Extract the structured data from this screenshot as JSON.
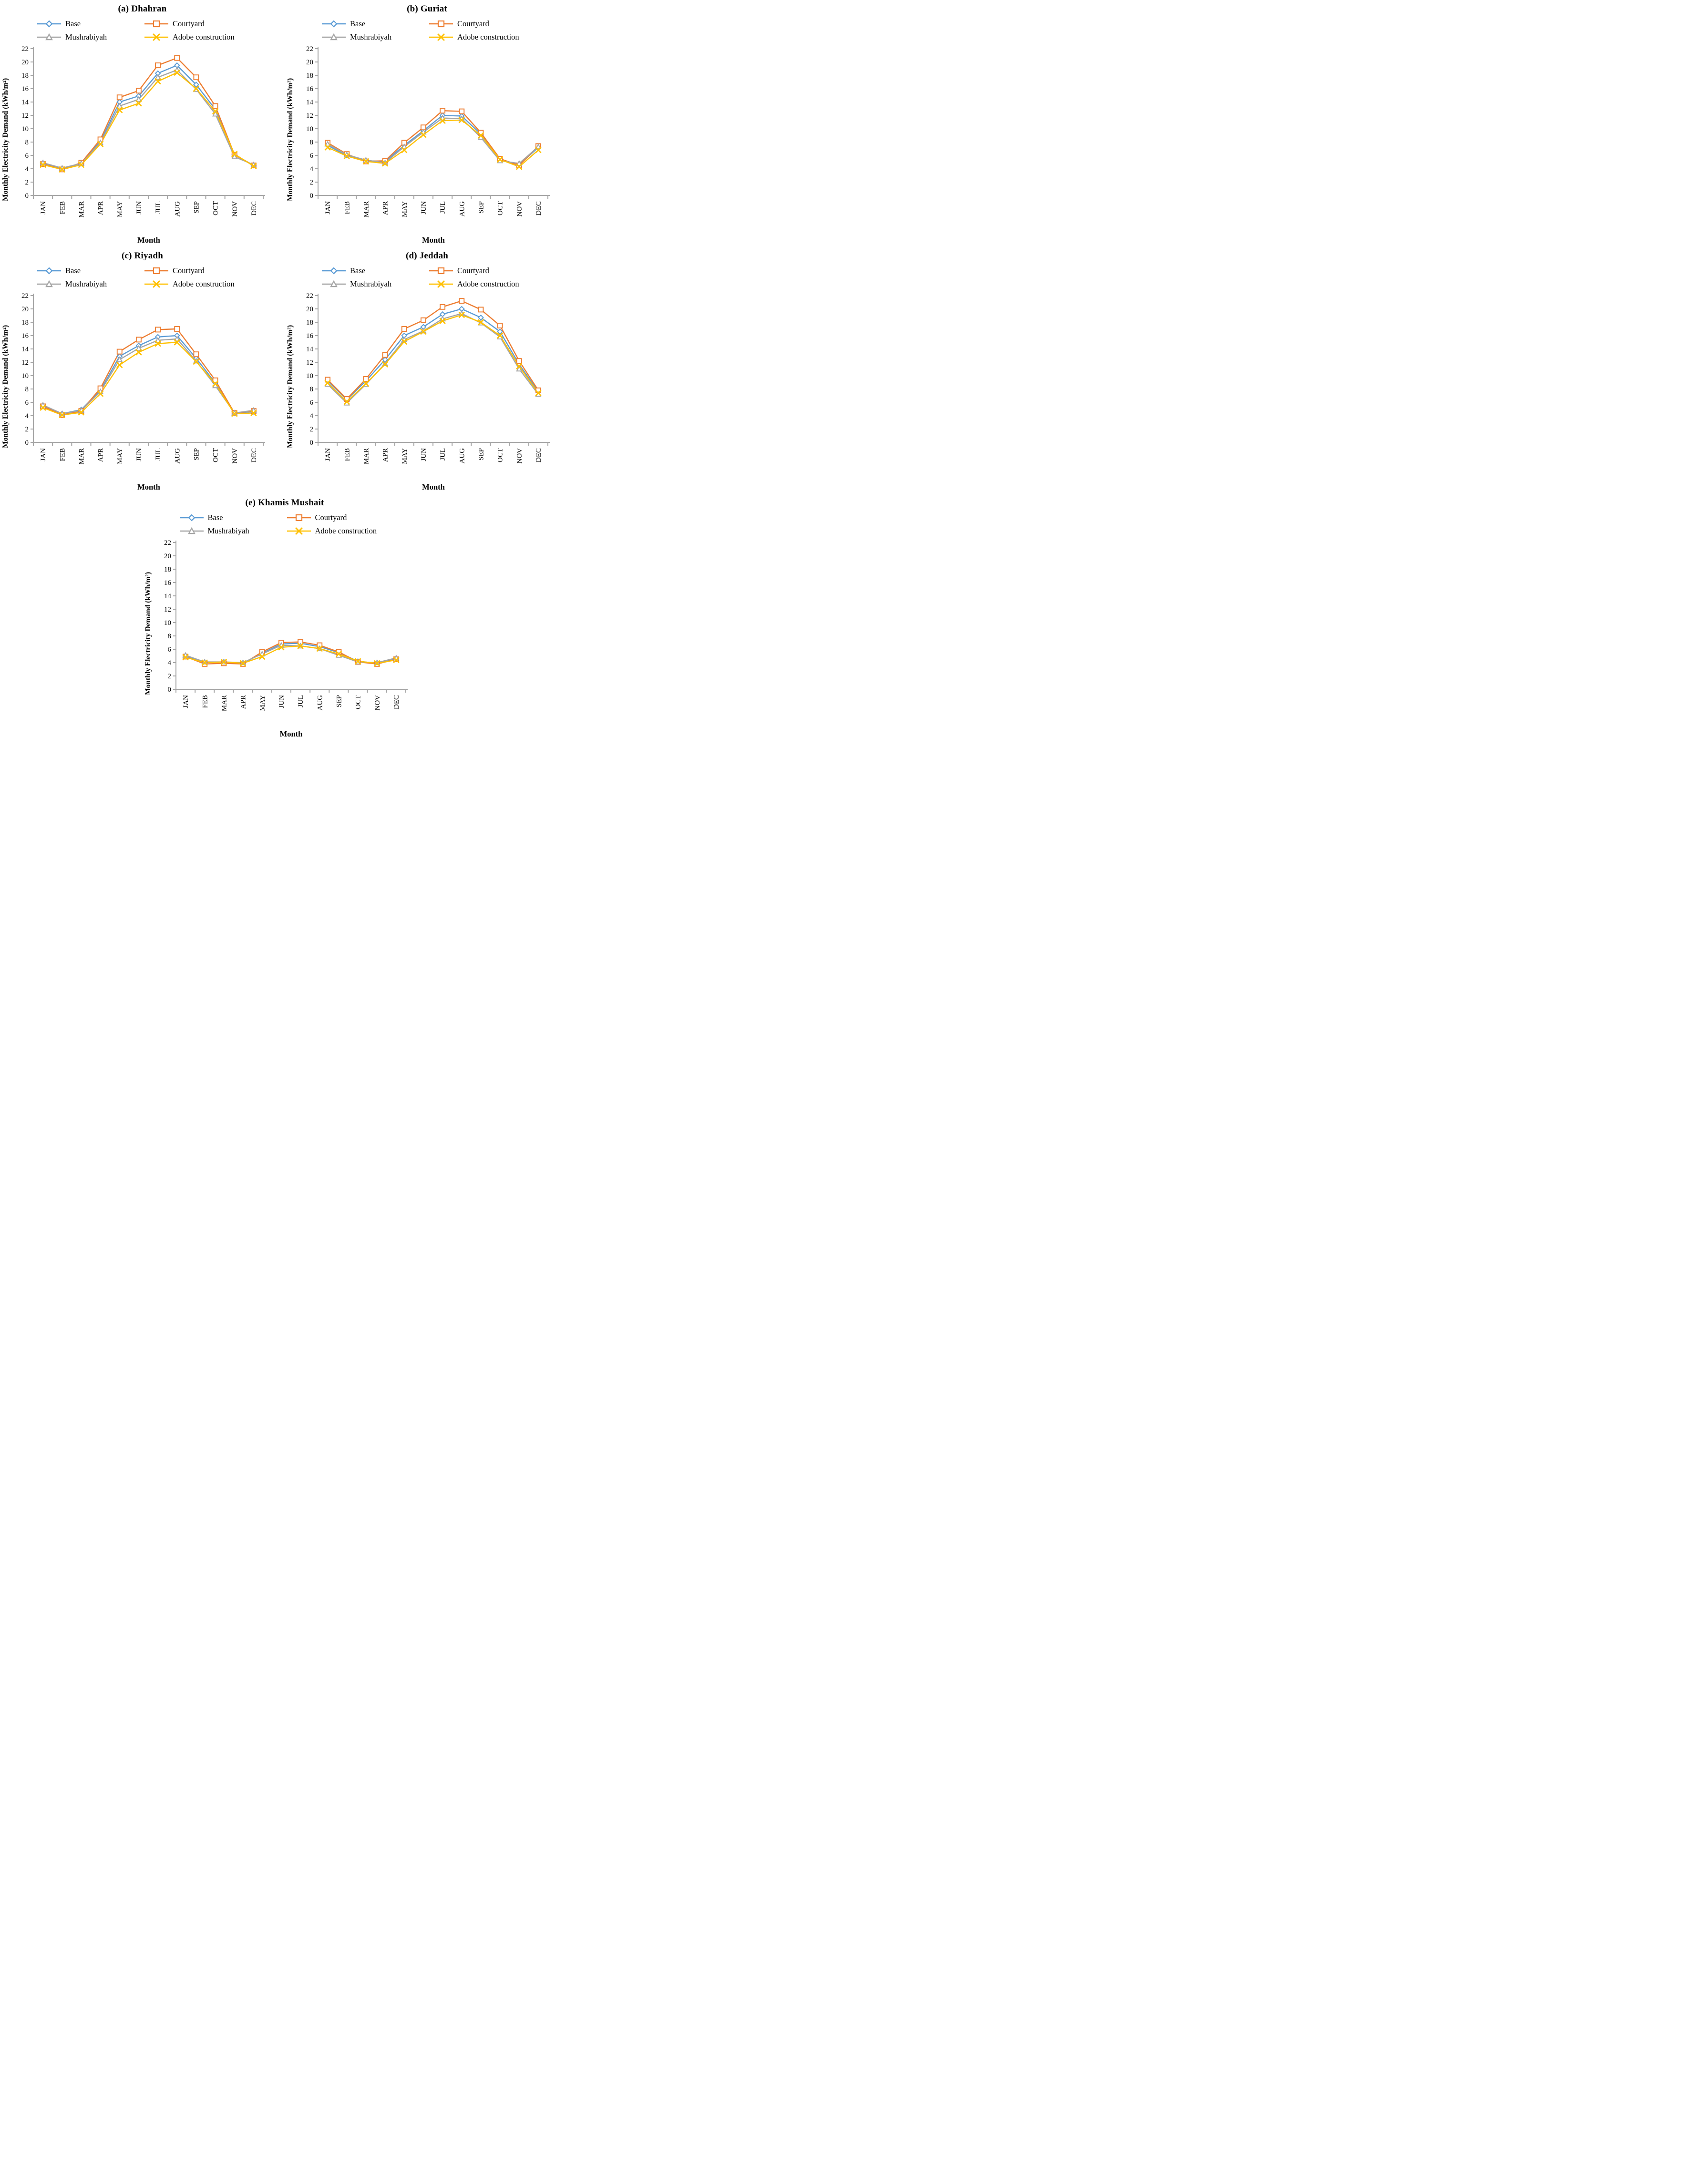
{
  "figure": {
    "axis_color": "#A6A6A6",
    "text_color": "#000000",
    "background": "#FFFFFF",
    "y_axis_label": "Monthly Electricity Demand (kWh/m²)",
    "x_axis_label": "Month",
    "series_colors": {
      "base": "#5B9BD5",
      "courtyard": "#ED7D31",
      "mushrabiyah": "#A5A5A5",
      "adobe_construction": "#FFC000"
    }
  },
  "chart_data": [
    {
      "type": "line",
      "title": "(a) Dhahran",
      "xlabel": "Month",
      "ylabel": "Monthly Electricity Demand (kWh/m²)",
      "ylim": [
        0,
        22
      ],
      "y_tick_step": 2,
      "grid": false,
      "legend_position": "top",
      "categories": [
        "JAN",
        "FEB",
        "MAR",
        "APR",
        "MAY",
        "JUN",
        "JUL",
        "AUG",
        "SEP",
        "OCT",
        "NOV",
        "DEC"
      ],
      "series": [
        {
          "name": "Base",
          "color": "#5B9BD5",
          "marker": "diamond",
          "values": [
            4.8,
            4.0,
            4.8,
            8.1,
            14.0,
            14.9,
            18.3,
            19.5,
            16.6,
            12.9,
            6.1,
            4.5
          ]
        },
        {
          "name": "Courtyard",
          "color": "#ED7D31",
          "marker": "square",
          "values": [
            4.7,
            3.9,
            4.9,
            8.4,
            14.7,
            15.7,
            19.5,
            20.6,
            17.7,
            13.4,
            6.1,
            4.5
          ]
        },
        {
          "name": "Mushrabiyah",
          "color": "#A5A5A5",
          "marker": "triangle",
          "values": [
            4.9,
            4.1,
            4.8,
            7.9,
            13.4,
            14.4,
            17.7,
            18.8,
            15.9,
            12.2,
            5.8,
            4.6
          ]
        },
        {
          "name": "Adobe construction",
          "color": "#FFC000",
          "marker": "x",
          "values": [
            4.6,
            3.9,
            4.6,
            7.7,
            12.8,
            13.8,
            17.1,
            18.4,
            16.0,
            12.6,
            6.2,
            4.4
          ]
        }
      ]
    },
    {
      "type": "line",
      "title": "(b) Guriat",
      "xlabel": "Month",
      "ylabel": "Monthly Electricity Demand (kWh/m²)",
      "ylim": [
        0,
        22
      ],
      "y_tick_step": 2,
      "grid": false,
      "legend_position": "top",
      "categories": [
        "JAN",
        "FEB",
        "MAR",
        "APR",
        "MAY",
        "JUN",
        "JUL",
        "AUG",
        "SEP",
        "OCT",
        "NOV",
        "DEC"
      ],
      "series": [
        {
          "name": "Base",
          "color": "#5B9BD5",
          "marker": "diamond",
          "values": [
            7.5,
            6.0,
            5.2,
            5.1,
            7.5,
            9.7,
            12.0,
            11.9,
            9.2,
            5.4,
            4.6,
            7.2
          ]
        },
        {
          "name": "Courtyard",
          "color": "#ED7D31",
          "marker": "square",
          "values": [
            7.9,
            6.2,
            5.1,
            5.2,
            7.9,
            10.2,
            12.7,
            12.6,
            9.4,
            5.5,
            4.5,
            7.4
          ]
        },
        {
          "name": "Mushrabiyah",
          "color": "#A5A5A5",
          "marker": "triangle",
          "values": [
            7.7,
            6.1,
            5.3,
            4.9,
            7.3,
            9.5,
            11.6,
            11.5,
            8.7,
            5.2,
            4.8,
            7.3
          ]
        },
        {
          "name": "Adobe construction",
          "color": "#FFC000",
          "marker": "x",
          "values": [
            7.2,
            5.9,
            5.1,
            4.8,
            6.8,
            9.1,
            11.2,
            11.3,
            9.0,
            5.4,
            4.3,
            6.8
          ]
        }
      ]
    },
    {
      "type": "line",
      "title": "(c) Riyadh",
      "xlabel": "Month",
      "ylabel": "Monthly Electricity Demand (kWh/m²)",
      "ylim": [
        0,
        22
      ],
      "y_tick_step": 2,
      "grid": false,
      "legend_position": "top",
      "categories": [
        "JAN",
        "FEB",
        "MAR",
        "APR",
        "MAY",
        "JUN",
        "JUL",
        "AUG",
        "SEP",
        "OCT",
        "NOV",
        "DEC"
      ],
      "series": [
        {
          "name": "Base",
          "color": "#5B9BD5",
          "marker": "diamond",
          "values": [
            5.5,
            4.3,
            4.9,
            7.8,
            12.9,
            14.5,
            15.8,
            16.0,
            12.6,
            8.9,
            4.4,
            4.6
          ]
        },
        {
          "name": "Courtyard",
          "color": "#ED7D31",
          "marker": "square",
          "values": [
            5.4,
            4.1,
            4.7,
            8.1,
            13.6,
            15.4,
            16.9,
            17.0,
            13.2,
            9.3,
            4.4,
            4.7
          ]
        },
        {
          "name": "Mushrabiyah",
          "color": "#A5A5A5",
          "marker": "triangle",
          "values": [
            5.6,
            4.3,
            4.8,
            7.6,
            12.4,
            14.1,
            15.3,
            15.5,
            12.2,
            8.5,
            4.4,
            4.8
          ]
        },
        {
          "name": "Adobe construction",
          "color": "#FFC000",
          "marker": "x",
          "values": [
            5.2,
            4.1,
            4.5,
            7.3,
            11.6,
            13.5,
            14.8,
            15.0,
            12.1,
            8.8,
            4.3,
            4.4
          ]
        }
      ]
    },
    {
      "type": "line",
      "title": "(d) Jeddah",
      "xlabel": "Month",
      "ylabel": "Monthly Electricity Demand (kWh/m²)",
      "ylim": [
        0,
        22
      ],
      "y_tick_step": 2,
      "grid": false,
      "legend_position": "top",
      "categories": [
        "JAN",
        "FEB",
        "MAR",
        "APR",
        "MAY",
        "JUN",
        "JUL",
        "AUG",
        "SEP",
        "OCT",
        "NOV",
        "DEC"
      ],
      "series": [
        {
          "name": "Base",
          "color": "#5B9BD5",
          "marker": "diamond",
          "values": [
            9.2,
            6.4,
            9.2,
            12.4,
            16.0,
            17.3,
            19.2,
            20.0,
            18.7,
            16.6,
            11.7,
            7.6
          ]
        },
        {
          "name": "Courtyard",
          "color": "#ED7D31",
          "marker": "square",
          "values": [
            9.4,
            6.5,
            9.5,
            13.1,
            17.0,
            18.3,
            20.3,
            21.2,
            19.9,
            17.5,
            12.2,
            7.8
          ]
        },
        {
          "name": "Mushrabiyah",
          "color": "#A5A5A5",
          "marker": "triangle",
          "values": [
            8.7,
            5.9,
            8.7,
            11.8,
            15.4,
            16.7,
            18.5,
            19.3,
            17.9,
            15.8,
            11.0,
            7.2
          ]
        },
        {
          "name": "Adobe construction",
          "color": "#FFC000",
          "marker": "x",
          "values": [
            8.9,
            6.1,
            8.8,
            11.7,
            15.1,
            16.6,
            18.2,
            19.1,
            18.0,
            16.0,
            11.4,
            7.4
          ]
        }
      ]
    },
    {
      "type": "line",
      "title": "(e) Khamis Mushait",
      "xlabel": "Month",
      "ylabel": "Monthly Electricity Demand (kWh/m²)",
      "ylim": [
        0,
        22
      ],
      "y_tick_step": 2,
      "grid": false,
      "legend_position": "top",
      "categories": [
        "JAN",
        "FEB",
        "MAR",
        "APR",
        "MAY",
        "JUN",
        "JUL",
        "AUG",
        "SEP",
        "OCT",
        "NOV",
        "DEC"
      ],
      "series": [
        {
          "name": "Base",
          "color": "#5B9BD5",
          "marker": "diamond",
          "values": [
            5.0,
            4.0,
            4.1,
            3.9,
            5.4,
            6.8,
            6.9,
            6.4,
            5.5,
            4.2,
            3.9,
            4.6
          ]
        },
        {
          "name": "Courtyard",
          "color": "#ED7D31",
          "marker": "square",
          "values": [
            4.9,
            3.8,
            3.9,
            3.8,
            5.6,
            7.0,
            7.1,
            6.6,
            5.6,
            4.1,
            3.8,
            4.5
          ]
        },
        {
          "name": "Mushrabiyah",
          "color": "#A5A5A5",
          "marker": "triangle",
          "values": [
            5.1,
            4.1,
            4.1,
            4.0,
            5.3,
            6.6,
            6.5,
            6.1,
            5.1,
            4.1,
            4.0,
            4.7
          ]
        },
        {
          "name": "Adobe construction",
          "color": "#FFC000",
          "marker": "x",
          "values": [
            4.8,
            4.0,
            4.1,
            3.9,
            4.9,
            6.3,
            6.5,
            6.1,
            5.3,
            4.2,
            3.9,
            4.4
          ]
        }
      ]
    }
  ]
}
